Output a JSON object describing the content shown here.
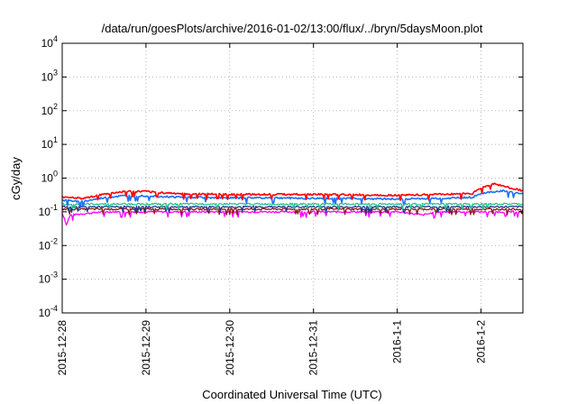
{
  "chart_data": {
    "type": "line",
    "title": "/data/run/goesPlots/archive/2016-01-02/13:00/flux/../bryn/5daysMoon.plot",
    "xlabel": "Coordinated Universal Time (UTC)",
    "ylabel": "cGy/day",
    "yscale": "log",
    "ylim": [
      0.0001,
      10000
    ],
    "xlim_days": [
      0,
      5.5
    ],
    "grid": true,
    "x_ticks": [
      {
        "label": "2015-12-28",
        "day": 0
      },
      {
        "label": "2015-12-29",
        "day": 1
      },
      {
        "label": "2015-12-30",
        "day": 2
      },
      {
        "label": "2015-12-31",
        "day": 3
      },
      {
        "label": "2016-1-1",
        "day": 4
      },
      {
        "label": "2016-1-2",
        "day": 5
      }
    ],
    "y_ticks": [
      {
        "base": "10",
        "exp": "-4",
        "value": 0.0001
      },
      {
        "base": "10",
        "exp": "-3",
        "value": 0.001
      },
      {
        "base": "10",
        "exp": "-2",
        "value": 0.01
      },
      {
        "base": "10",
        "exp": "-1",
        "value": 0.1
      },
      {
        "base": "10",
        "exp": "0",
        "value": 1
      },
      {
        "base": "10",
        "exp": "1",
        "value": 10
      },
      {
        "base": "10",
        "exp": "2",
        "value": 100
      },
      {
        "base": "10",
        "exp": "3",
        "value": 1000
      },
      {
        "base": "10",
        "exp": "4",
        "value": 10000
      }
    ],
    "series": [
      {
        "color": "#ff00ff",
        "x": [
          0,
          0.05,
          0.1,
          0.5,
          1,
          1.5,
          2,
          2.5,
          3,
          3.5,
          4,
          4.3,
          4.5,
          5,
          5.5
        ],
        "y": [
          0.09,
          0.04,
          0.08,
          0.1,
          0.1,
          0.1,
          0.1,
          0.1,
          0.1,
          0.1,
          0.1,
          0.08,
          0.1,
          0.1,
          0.1
        ]
      },
      {
        "color": "#8b1a1a",
        "x": [
          0,
          0.5,
          1,
          1.5,
          2,
          2.5,
          3,
          3.5,
          4,
          4.5,
          5,
          5.5
        ],
        "y": [
          0.12,
          0.12,
          0.12,
          0.12,
          0.12,
          0.12,
          0.12,
          0.12,
          0.12,
          0.12,
          0.12,
          0.12
        ]
      },
      {
        "color": "#1a3a8b",
        "x": [
          0,
          0.5,
          1,
          1.5,
          2,
          2.5,
          3,
          3.5,
          4,
          4.5,
          5,
          5.5
        ],
        "y": [
          0.14,
          0.14,
          0.14,
          0.14,
          0.14,
          0.14,
          0.14,
          0.14,
          0.14,
          0.14,
          0.14,
          0.14
        ]
      },
      {
        "color": "#2bbf8f",
        "x": [
          0,
          0.5,
          1,
          1.5,
          2,
          2.5,
          3,
          3.5,
          4,
          4.5,
          5,
          5.5
        ],
        "y": [
          0.17,
          0.17,
          0.17,
          0.17,
          0.17,
          0.17,
          0.17,
          0.17,
          0.17,
          0.17,
          0.17,
          0.17
        ]
      },
      {
        "color": "#1e6fff",
        "x": [
          0,
          0.25,
          0.5,
          0.75,
          1,
          1.25,
          1.5,
          2,
          2.5,
          3,
          3.5,
          4,
          4.5,
          4.9,
          5,
          5.25,
          5.5
        ],
        "y": [
          0.22,
          0.2,
          0.26,
          0.3,
          0.3,
          0.28,
          0.27,
          0.26,
          0.26,
          0.25,
          0.25,
          0.24,
          0.25,
          0.27,
          0.35,
          0.42,
          0.33
        ]
      },
      {
        "color": "#ff0000",
        "x": [
          0,
          0.25,
          0.5,
          0.75,
          1,
          1.25,
          1.5,
          2,
          2.5,
          3,
          3.5,
          4,
          4.5,
          4.9,
          5,
          5.15,
          5.3,
          5.5
        ],
        "y": [
          0.28,
          0.25,
          0.33,
          0.4,
          0.4,
          0.36,
          0.34,
          0.33,
          0.33,
          0.33,
          0.32,
          0.31,
          0.33,
          0.35,
          0.5,
          0.68,
          0.55,
          0.42
        ]
      }
    ]
  }
}
